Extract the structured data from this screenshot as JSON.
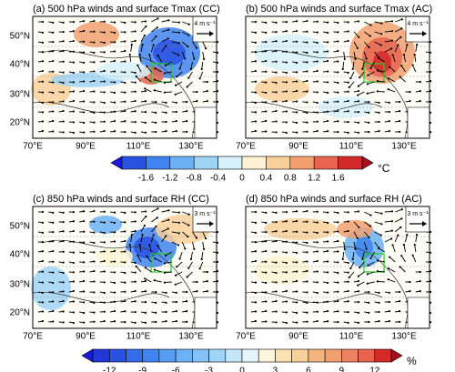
{
  "panels": [
    {
      "title": "(a) 500 hPa winds and surface Tmax (CC)",
      "ref_vector": "4 m s⁻¹"
    },
    {
      "title": "(b) 500 hPa winds and surface Tmax (AC)",
      "ref_vector": "4 m s⁻¹"
    },
    {
      "title": "(c) 850 hPa winds and surface RH (CC)",
      "ref_vector": "3 m s⁻¹"
    },
    {
      "title": "(d) 850 hPa winds and surface RH (AC)",
      "ref_vector": "3 m s⁻¹"
    }
  ],
  "lon_labels": [
    "70°E",
    "90°E",
    "110°E",
    "130°E"
  ],
  "lat_labels": [
    "50°N",
    "40°N",
    "30°N",
    "20°N"
  ],
  "colorbars": [
    {
      "ticks": [
        -1.6,
        -1.2,
        -0.8,
        -0.4,
        0,
        0.4,
        0.8,
        1.2,
        1.6
      ],
      "unit": "°C",
      "colors": [
        "#1a1ad8",
        "#2a52e0",
        "#3f84f0",
        "#6cb0f5",
        "#a0d4f5",
        "#d6f1fa",
        "#fdf3d2",
        "#f8d09a",
        "#f2a070",
        "#e86450",
        "#d42a2a",
        "#a80e1e"
      ]
    },
    {
      "ticks": [
        -12,
        -9,
        -6,
        -3,
        0,
        3,
        6,
        9,
        12
      ],
      "unit": "%",
      "colors": [
        "#1a1ad8",
        "#2236dc",
        "#2a52e0",
        "#356ce8",
        "#3f84f0",
        "#559cf2",
        "#6cb0f5",
        "#86c2f5",
        "#a0d4f5",
        "#c4e8f8",
        "#e4f6fb",
        "#fdf6dc",
        "#fbe2b0",
        "#f8d09a",
        "#f4b480",
        "#f2a070",
        "#ec8260",
        "#e86450",
        "#d42a2a",
        "#a80e1e"
      ]
    }
  ]
}
